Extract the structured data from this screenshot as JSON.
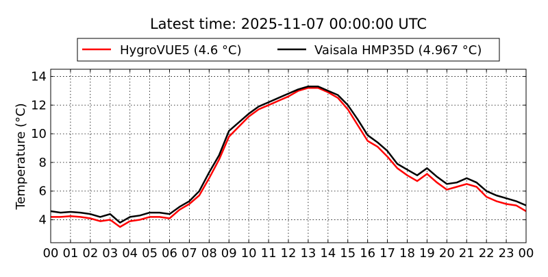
{
  "chart_data": {
    "type": "line",
    "title": "Latest time: 2025-11-07 00:00:00 UTC",
    "xlabel": "",
    "ylabel": "Temperature (°C)",
    "xlim": [
      0,
      24
    ],
    "ylim": [
      2.4,
      14.5
    ],
    "grid": true,
    "legend_position": "top-center",
    "x_ticks": [
      0,
      1,
      2,
      3,
      4,
      5,
      6,
      7,
      8,
      9,
      10,
      11,
      12,
      13,
      14,
      15,
      16,
      17,
      18,
      19,
      20,
      21,
      22,
      23,
      24
    ],
    "x_tick_labels": [
      "00",
      "01",
      "02",
      "03",
      "04",
      "05",
      "06",
      "07",
      "08",
      "09",
      "10",
      "11",
      "12",
      "13",
      "14",
      "15",
      "16",
      "17",
      "18",
      "19",
      "20",
      "21",
      "22",
      "23",
      "00"
    ],
    "y_ticks": [
      4,
      6,
      8,
      10,
      12,
      14
    ],
    "y_tick_labels": [
      "4",
      "6",
      "8",
      "10",
      "12",
      "14"
    ],
    "x": [
      0,
      0.5,
      1,
      1.5,
      2,
      2.5,
      3,
      3.5,
      4,
      4.5,
      5,
      5.5,
      6,
      6.5,
      7,
      7.5,
      8,
      8.5,
      9,
      9.5,
      10,
      10.5,
      11,
      11.5,
      12,
      12.5,
      13,
      13.5,
      14,
      14.5,
      15,
      15.5,
      16,
      16.5,
      17,
      17.5,
      18,
      18.5,
      19,
      19.5,
      20,
      20.5,
      21,
      21.5,
      22,
      22.5,
      23,
      23.5,
      24
    ],
    "series": [
      {
        "name": "HygroVUE5 (4.6 °C)",
        "color": "#ff0000",
        "values": [
          4.2,
          4.2,
          4.25,
          4.2,
          4.1,
          3.9,
          4.0,
          3.5,
          3.9,
          4.0,
          4.2,
          4.2,
          4.1,
          4.7,
          5.1,
          5.7,
          6.9,
          8.2,
          9.8,
          10.5,
          11.2,
          11.7,
          12.0,
          12.3,
          12.6,
          13.0,
          13.2,
          13.2,
          12.9,
          12.5,
          11.7,
          10.6,
          9.5,
          9.1,
          8.4,
          7.6,
          7.1,
          6.7,
          7.2,
          6.6,
          6.1,
          6.3,
          6.5,
          6.3,
          5.6,
          5.3,
          5.1,
          5.0,
          4.6
        ]
      },
      {
        "name": "Vaisala HMP35D (4.967 °C)",
        "color": "#000000",
        "values": [
          4.6,
          4.5,
          4.55,
          4.5,
          4.4,
          4.2,
          4.4,
          3.8,
          4.2,
          4.3,
          4.5,
          4.5,
          4.4,
          4.9,
          5.3,
          6.0,
          7.3,
          8.5,
          10.2,
          10.8,
          11.4,
          11.9,
          12.2,
          12.5,
          12.8,
          13.1,
          13.3,
          13.3,
          13.0,
          12.7,
          12.0,
          11.0,
          9.9,
          9.4,
          8.8,
          7.9,
          7.5,
          7.1,
          7.6,
          7.0,
          6.5,
          6.6,
          6.9,
          6.6,
          6.0,
          5.7,
          5.5,
          5.3,
          5.0
        ]
      }
    ]
  }
}
